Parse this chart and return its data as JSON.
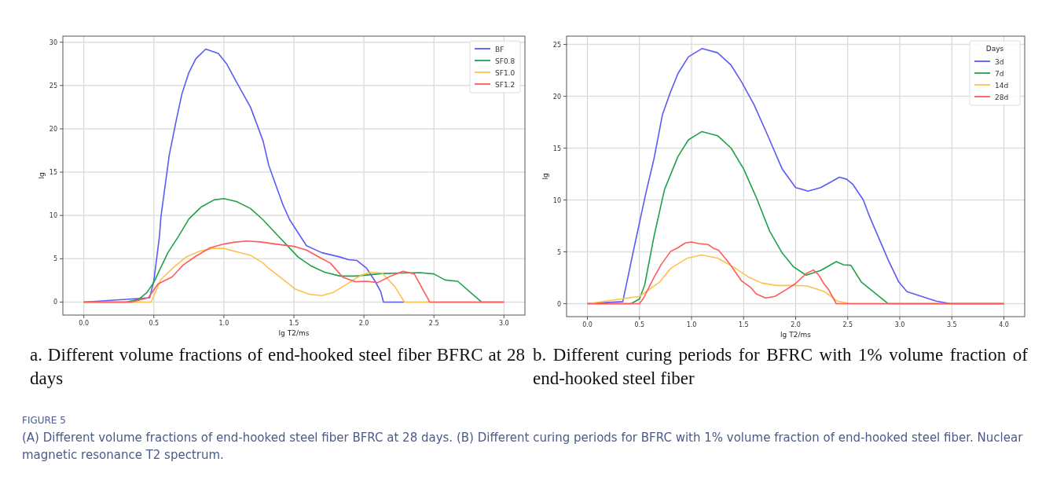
{
  "chart_data": [
    {
      "type": "line",
      "title": "a. Different volume fractions of end-hooked steel fiber BFRC at 28 days",
      "xlabel": "lg T2/ms",
      "ylabel": "lg",
      "xlim": [
        -0.15,
        3.15
      ],
      "ylim": [
        -1.5,
        30.7
      ],
      "xticks": [
        {
          "value": 0,
          "label": "0.0"
        },
        {
          "value": 0.5,
          "label": "0.5"
        },
        {
          "value": 1,
          "label": "1.0"
        },
        {
          "value": 1.5,
          "label": "1.5"
        },
        {
          "value": 2,
          "label": "2.0"
        },
        {
          "value": 2.5,
          "label": "2.5"
        },
        {
          "value": 3,
          "label": "3.0"
        }
      ],
      "yticks": [
        0,
        5,
        10,
        15,
        20,
        25,
        30
      ],
      "grid": true,
      "legend": "top right",
      "annotations": [
        "FIGURE 5",
        "(A) Different volume fractions of end-hooked steel fiber BFRC at 28 days. (B) Different curing periods for BFRC with 1% volume fraction of end-hooked steel fiber. Nuclear magnetic resonance T2 spectrum."
      ],
      "series": [
        {
          "name": "BF",
          "color": "#5b5bf5",
          "x": [
            0,
            0.47,
            0.5,
            0.54,
            0.55,
            0.61,
            0.66,
            0.7,
            0.75,
            0.8,
            0.87,
            0.96,
            1.02,
            1.09,
            1.19,
            1.28,
            1.32,
            1.42,
            1.47,
            1.59,
            1.7,
            1.83,
            1.89,
            1.95,
            2.02,
            2.08,
            2.12,
            2.14,
            2.29
          ],
          "values": [
            0,
            0.5,
            2.5,
            7.6,
            9.8,
            17,
            21,
            24,
            26.5,
            28.1,
            29.2,
            28.7,
            27.5,
            25.4,
            22.5,
            18.6,
            15.8,
            11.3,
            9.5,
            6.5,
            5.7,
            5.2,
            4.9,
            4.8,
            3.9,
            2.4,
            1.2,
            0,
            0
          ]
        },
        {
          "name": "SF0.8",
          "color": "#1fa24a",
          "x": [
            0,
            0.3,
            0.39,
            0.45,
            0.5,
            0.6,
            0.68,
            0.75,
            0.84,
            0.93,
            1.0,
            1.09,
            1.19,
            1.28,
            1.32,
            1.53,
            1.62,
            1.72,
            1.83,
            1.94,
            2.13,
            2.26,
            2.4,
            2.5,
            2.58,
            2.67,
            2.84,
            3.0
          ],
          "values": [
            0,
            0,
            0.3,
            1.1,
            2.3,
            5.7,
            7.7,
            9.6,
            11,
            11.8,
            11.95,
            11.6,
            10.8,
            9.5,
            8.8,
            5.2,
            4.2,
            3.45,
            3,
            3,
            3.3,
            3.35,
            3.4,
            3.25,
            2.55,
            2.4,
            0,
            0
          ]
        },
        {
          "name": "SF1.0",
          "color": "#ffc04d",
          "x": [
            0,
            0.48,
            0.55,
            0.64,
            0.73,
            0.83,
            0.92,
            1.0,
            1.07,
            1.19,
            1.28,
            1.32,
            1.51,
            1.61,
            1.7,
            1.78,
            1.88,
            1.98,
            2.05,
            2.13,
            2.22,
            2.29,
            3.0
          ],
          "values": [
            0,
            0,
            2.6,
            4,
            5.2,
            5.9,
            6.2,
            6.2,
            5.9,
            5.4,
            4.5,
            3.9,
            1.5,
            0.9,
            0.75,
            1.1,
            2.1,
            3.1,
            3.45,
            3.35,
            1.8,
            0,
            0
          ]
        },
        {
          "name": "SF1.2",
          "color": "#ff5a5a",
          "x": [
            0,
            0.34,
            0.46,
            0.53,
            0.63,
            0.71,
            0.8,
            0.9,
            1.0,
            1.07,
            1.16,
            1.26,
            1.37,
            1.51,
            1.59,
            1.69,
            1.76,
            1.85,
            1.94,
            2.02,
            2.1,
            2.19,
            2.28,
            2.36,
            2.47,
            3.0
          ],
          "values": [
            0,
            0,
            0.5,
            2.1,
            2.9,
            4.3,
            5.3,
            6.25,
            6.7,
            6.9,
            7.05,
            6.95,
            6.7,
            6.4,
            6,
            5.1,
            4.5,
            2.85,
            2.35,
            2.4,
            2.25,
            3,
            3.55,
            3.25,
            0,
            0
          ]
        }
      ]
    },
    {
      "type": "line",
      "title": "b. Different curing periods for BFRC with 1% volume fraction of end-hooked steel fiber",
      "xlabel": "lg T2/ms",
      "ylabel": "lg",
      "xlim": [
        -0.2,
        4.2
      ],
      "ylim": [
        -1.25,
        25.8
      ],
      "xticks": [
        {
          "value": 0,
          "label": "0.0"
        },
        {
          "value": 0.5,
          "label": "0.5"
        },
        {
          "value": 1,
          "label": "1.0"
        },
        {
          "value": 1.5,
          "label": "1.5"
        },
        {
          "value": 2,
          "label": "2.0"
        },
        {
          "value": 2.5,
          "label": "2.5"
        },
        {
          "value": 3,
          "label": "3.0"
        },
        {
          "value": 3.5,
          "label": "3.5"
        },
        {
          "value": 4,
          "label": "4.0"
        }
      ],
      "yticks": [
        0,
        5,
        10,
        15,
        20,
        25
      ],
      "grid": true,
      "legend": "top right",
      "legend_title": "Days",
      "series": [
        {
          "name": "3d",
          "color": "#5b5bf5",
          "x": [
            0,
            0.34,
            0.44,
            0.5,
            0.56,
            0.64,
            0.72,
            0.79,
            0.87,
            0.97,
            1.1,
            1.25,
            1.38,
            1.48,
            1.6,
            1.72,
            1.87,
            2.0,
            2.12,
            2.24,
            2.34,
            2.42,
            2.49,
            2.55,
            2.65,
            2.7,
            2.77,
            2.89,
            2.99,
            3.07,
            3.35,
            3.49,
            4.0
          ],
          "values": [
            0,
            0.2,
            5,
            7.8,
            10.6,
            14,
            18.2,
            20.2,
            22.2,
            23.8,
            24.6,
            24.2,
            23,
            21.4,
            19.2,
            16.5,
            13,
            11.2,
            10.85,
            11.2,
            11.75,
            12.2,
            12,
            11.5,
            10,
            8.65,
            7,
            4.2,
            2.1,
            1.15,
            0.25,
            0,
            0
          ]
        },
        {
          "name": "7d",
          "color": "#1fa24a",
          "x": [
            0,
            0.42,
            0.5,
            0.55,
            0.64,
            0.74,
            0.87,
            0.97,
            1.1,
            1.25,
            1.38,
            1.5,
            1.62,
            1.75,
            1.87,
            1.98,
            2.1,
            2.24,
            2.39,
            2.46,
            2.53,
            2.63,
            2.89,
            4.0
          ],
          "values": [
            0,
            0,
            0.45,
            1.8,
            6.5,
            11,
            14.2,
            15.8,
            16.6,
            16.2,
            15,
            13,
            10.3,
            7,
            4.9,
            3.55,
            2.75,
            3.2,
            4.05,
            3.75,
            3.7,
            2.1,
            0,
            0
          ]
        },
        {
          "name": "14d",
          "color": "#ffc04d",
          "x": [
            0,
            0.5,
            0.69,
            0.8,
            0.96,
            1.1,
            1.25,
            1.4,
            1.55,
            1.67,
            1.82,
            2.0,
            2.11,
            2.27,
            2.4,
            2.53,
            4.0
          ],
          "values": [
            0,
            0.7,
            2.05,
            3.4,
            4.4,
            4.7,
            4.4,
            3.55,
            2.55,
            2,
            1.75,
            1.75,
            1.7,
            1.2,
            0.25,
            0,
            0
          ]
        },
        {
          "name": "28d",
          "color": "#ff5a5a",
          "x": [
            0,
            0.5,
            0.54,
            0.64,
            0.71,
            0.8,
            0.87,
            0.94,
            1.0,
            1.07,
            1.16,
            1.21,
            1.26,
            1.37,
            1.48,
            1.57,
            1.62,
            1.71,
            1.8,
            1.9,
            2.0,
            2.1,
            2.17,
            2.22,
            2.27,
            2.32,
            2.39,
            4.0
          ],
          "values": [
            0,
            0,
            0.55,
            2.55,
            3.8,
            5.05,
            5.4,
            5.85,
            5.95,
            5.8,
            5.7,
            5.35,
            5.15,
            3.8,
            2.2,
            1.55,
            0.95,
            0.55,
            0.7,
            1.3,
            1.95,
            2.9,
            3.25,
            2.8,
            1.95,
            1.3,
            0,
            0
          ]
        }
      ]
    }
  ]
}
